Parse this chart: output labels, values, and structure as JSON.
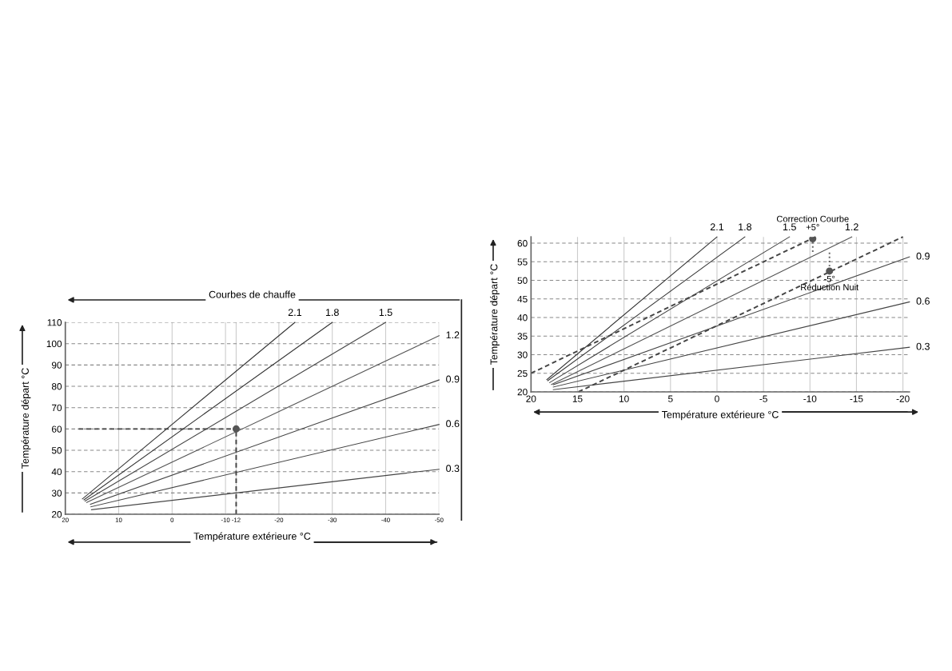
{
  "chart_data": [
    {
      "type": "line",
      "title": "Courbes de chauffe",
      "xlabel": "Température extérieure °C",
      "ylabel": "Température départ °C",
      "xlim": [
        20,
        -50
      ],
      "xticks": [
        20,
        10,
        0,
        -10,
        -12,
        -20,
        -30,
        -40,
        -50
      ],
      "ylim": [
        20,
        110
      ],
      "yticks": [
        20,
        30,
        40,
        50,
        60,
        70,
        80,
        90,
        100,
        110
      ],
      "grid": true,
      "series": [
        {
          "name": "2.1",
          "color": "#333333",
          "x": [
            16.8,
            -23
          ],
          "values": [
            27.2,
            110
          ]
        },
        {
          "name": "1.8",
          "color": "#333333",
          "x": [
            16.5,
            -30
          ],
          "values": [
            26.8,
            110
          ]
        },
        {
          "name": "1.5",
          "color": "#444444",
          "x": [
            16.3,
            -40
          ],
          "values": [
            26.2,
            110
          ]
        },
        {
          "name": "1.2",
          "color": "#555555",
          "x": [
            16,
            -50
          ],
          "values": [
            25.5,
            103.7
          ]
        },
        {
          "name": "0.9",
          "color": "#444444",
          "x": [
            15.3,
            -50
          ],
          "values": [
            24.7,
            83
          ]
        },
        {
          "name": "0.6",
          "color": "#444444",
          "x": [
            15.2,
            -50
          ],
          "values": [
            23.5,
            62.1
          ]
        },
        {
          "name": "0.3",
          "color": "#444444",
          "x": [
            15.1,
            -50
          ],
          "values": [
            22.1,
            41.1
          ]
        },
        {
          "type": "line",
          "line_style": "dashed",
          "color": "#444444",
          "x": [
            17.5,
            -12
          ],
          "values": [
            60,
            60
          ]
        },
        {
          "type": "line",
          "line_style": "dashed",
          "color": "#444444",
          "x": [
            -12,
            -12
          ],
          "values": [
            20,
            60
          ]
        },
        {
          "type": "scatter",
          "marker": "circle",
          "color": "#555555",
          "x": [
            -12
          ],
          "values": [
            60
          ]
        }
      ]
    },
    {
      "type": "line",
      "xlabel": "Température extérieure °C",
      "ylabel": "Température départ °C",
      "xlim": [
        20,
        -20.7
      ],
      "xticks": [
        20,
        15,
        10,
        5,
        0,
        -5,
        -10,
        -15,
        -20
      ],
      "ylim": [
        20,
        61.7
      ],
      "yticks": [
        20,
        25,
        30,
        35,
        40,
        45,
        50,
        55,
        60
      ],
      "grid": true,
      "annotations": [
        {
          "text": "Correction Courbe\n+5°",
          "x": -10.3,
          "y": 61.2
        },
        {
          "text": "-5°\nRéduction Nuit",
          "x": -12.1,
          "y": 52.5
        }
      ],
      "series": [
        {
          "name": "2.1",
          "color": "#333333",
          "x": [
            18.3,
            0
          ],
          "values": [
            23.3,
            61.7
          ]
        },
        {
          "name": "1.8",
          "color": "#333333",
          "x": [
            18.2,
            -3
          ],
          "values": [
            23,
            61.7
          ]
        },
        {
          "name": "1.5",
          "color": "#444444",
          "x": [
            18,
            -7.8
          ],
          "values": [
            22.5,
            61.7
          ]
        },
        {
          "name": "1.2",
          "color": "#555555",
          "x": [
            17.8,
            -14.5
          ],
          "values": [
            22,
            61.7
          ]
        },
        {
          "name": "0.9",
          "color": "#444444",
          "x": [
            17.6,
            -20.7
          ],
          "values": [
            21.9,
            56.3
          ]
        },
        {
          "name": "0.6",
          "color": "#444444",
          "x": [
            17.6,
            -20.7
          ],
          "values": [
            21.3,
            44.2
          ]
        },
        {
          "name": "0.3",
          "color": "#444444",
          "x": [
            17.6,
            -20.7
          ],
          "values": [
            20.6,
            32
          ]
        },
        {
          "type": "line",
          "line_style": "dashed",
          "color": "#444444",
          "x": [
            20,
            -10.6
          ],
          "values": [
            25,
            61.7
          ]
        },
        {
          "type": "line",
          "line_style": "dashed",
          "color": "#444444",
          "x": [
            14.9,
            -20
          ],
          "values": [
            20,
            61.7
          ]
        },
        {
          "type": "line",
          "line_style": "dotted",
          "color": "#666666",
          "x": [
            -10.3,
            -10.3
          ],
          "values": [
            60.3,
            57
          ]
        },
        {
          "type": "line",
          "line_style": "dotted",
          "color": "#666666",
          "x": [
            -12.1,
            -12.1
          ],
          "values": [
            57.5,
            53.3
          ]
        },
        {
          "type": "scatter",
          "marker": "circle",
          "color": "#555555",
          "x": [
            -10.3,
            -12.1
          ],
          "values": [
            61.2,
            52.5
          ]
        }
      ]
    }
  ]
}
